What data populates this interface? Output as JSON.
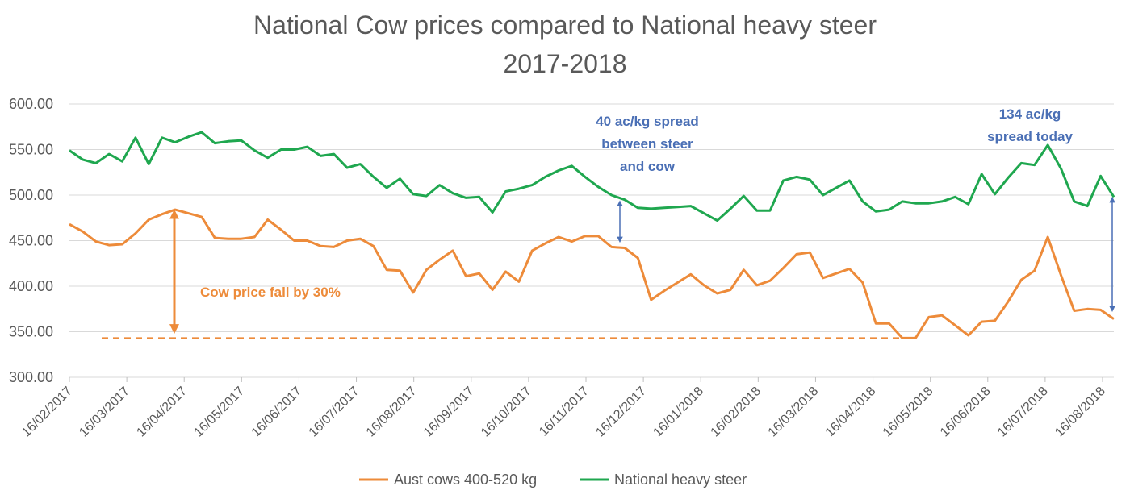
{
  "chart_data": {
    "type": "line",
    "title": "National Cow prices compared to National heavy steer",
    "subtitle": "2017-2018",
    "xlabel": "",
    "ylabel": "",
    "ylim": [
      300,
      600
    ],
    "y_ticks": [
      "300.00",
      "350.00",
      "400.00",
      "450.00",
      "500.00",
      "550.00",
      "600.00"
    ],
    "x_tick_labels": [
      "16/02/2017",
      "16/03/2017",
      "16/04/2017",
      "16/05/2017",
      "16/06/2017",
      "16/07/2017",
      "16/08/2017",
      "16/09/2017",
      "16/10/2017",
      "16/11/2017",
      "16/12/2017",
      "16/01/2018",
      "16/02/2018",
      "16/03/2018",
      "16/04/2018",
      "16/05/2018",
      "16/06/2018",
      "16/07/2018",
      "16/08/2018"
    ],
    "grid": "horizontal",
    "legend_position": "bottom",
    "series": [
      {
        "name": "Aust cows 400-520 kg",
        "color": "#ED8B3A",
        "values": [
          468,
          460,
          449,
          445,
          446,
          458,
          473,
          479,
          484,
          480,
          476,
          453,
          452,
          452,
          454,
          473,
          462,
          450,
          450,
          444,
          443,
          450,
          452,
          444,
          418,
          417,
          393,
          418,
          429,
          439,
          411,
          414,
          396,
          416,
          405,
          439,
          447,
          454,
          449,
          455,
          455,
          443,
          442,
          431,
          385,
          395,
          404,
          413,
          401,
          392,
          396,
          418,
          401,
          406,
          420,
          435,
          437,
          409,
          414,
          419,
          404,
          359,
          359,
          343,
          343,
          366,
          368,
          357,
          346,
          361,
          362,
          383,
          407,
          417,
          454,
          412,
          373,
          375,
          374,
          364
        ]
      },
      {
        "name": "National heavy steer",
        "color": "#1FA74F",
        "values": [
          549,
          539,
          535,
          545,
          537,
          563,
          534,
          563,
          558,
          564,
          569,
          557,
          559,
          560,
          549,
          541,
          550,
          550,
          553,
          543,
          545,
          530,
          534,
          520,
          508,
          518,
          501,
          499,
          511,
          502,
          497,
          498,
          481,
          504,
          507,
          511,
          520,
          527,
          532,
          520,
          509,
          500,
          495,
          486,
          485,
          486,
          487,
          488,
          480,
          472,
          485,
          499,
          483,
          483,
          516,
          520,
          517,
          500,
          508,
          516,
          493,
          482,
          484,
          493,
          491,
          491,
          493,
          498,
          490,
          523,
          501,
          519,
          535,
          533,
          555,
          529,
          493,
          488,
          521,
          498
        ]
      }
    ],
    "annotations": {
      "cow_fall": "Cow price fall by 30%",
      "spread_1": [
        "40 ac/kg spread",
        "between steer",
        "and cow"
      ],
      "spread_2": [
        "134 ac/kg",
        "spread today"
      ],
      "dashed_line_level": 343
    }
  }
}
